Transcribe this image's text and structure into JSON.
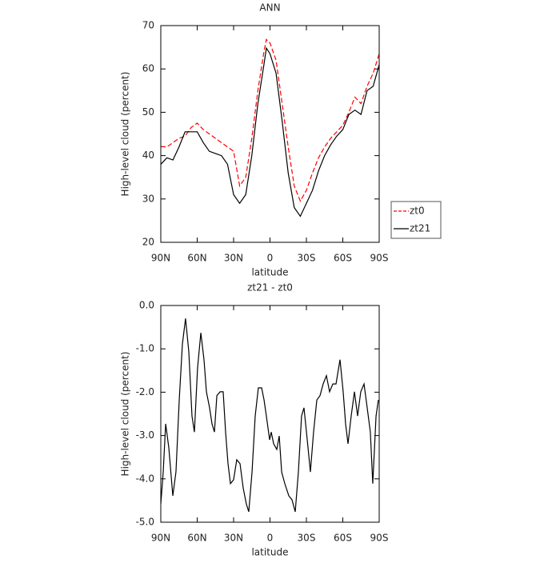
{
  "chart_data": [
    {
      "type": "line",
      "title": "ANN",
      "xlabel": "latitude",
      "ylabel": "High-level cloud (percent)",
      "x": [
        90,
        85,
        80,
        75,
        70,
        65,
        60,
        55,
        50,
        45,
        40,
        35,
        30,
        25,
        20,
        15,
        10,
        5,
        3,
        0,
        -5,
        -10,
        -15,
        -20,
        -25,
        -30,
        -35,
        -40,
        -45,
        -50,
        -55,
        -60,
        -65,
        -70,
        -75,
        -80,
        -85,
        -90
      ],
      "series": [
        {
          "name": "zt0",
          "color": "#ff0000",
          "line_style": "dashed",
          "values": [
            42.1,
            42,
            43,
            44,
            44.5,
            46.5,
            47.5,
            46,
            45,
            44,
            43,
            42,
            41,
            33,
            35,
            44,
            55,
            64,
            66.8,
            66,
            62,
            52,
            42,
            33,
            29.5,
            32,
            36,
            39.5,
            42,
            44,
            45.5,
            47,
            50,
            53.5,
            52,
            56,
            59,
            63.5
          ]
        },
        {
          "name": "zt21",
          "color": "#000000",
          "line_style": "solid",
          "values": [
            38,
            39.5,
            39,
            42,
            45.5,
            45.5,
            45.5,
            43,
            41,
            40.5,
            40,
            38,
            31,
            29,
            31,
            40,
            52,
            61,
            64.8,
            63.5,
            59,
            48,
            36,
            28,
            26,
            29,
            32,
            36.5,
            40,
            42.5,
            44.5,
            46,
            49.5,
            50.5,
            49.5,
            55,
            56,
            61
          ]
        }
      ],
      "xlim": [
        90,
        -90
      ],
      "xticks": [
        {
          "value": 90,
          "label": "90N"
        },
        {
          "value": 60,
          "label": "60N"
        },
        {
          "value": 30,
          "label": "30N"
        },
        0,
        {
          "value": -30,
          "label": "30S"
        },
        {
          "value": -60,
          "label": "60S"
        },
        {
          "value": -90,
          "label": "90S"
        }
      ],
      "ylim": [
        20,
        70
      ],
      "yticks": [
        20,
        30,
        40,
        50,
        60,
        70
      ],
      "legend": "right"
    },
    {
      "type": "line",
      "title": "zt21 - zt0",
      "xlabel": "latitude",
      "ylabel": "High-level cloud (percent)",
      "x": [
        90,
        88,
        86,
        83.4,
        80.1,
        77.5,
        74.8,
        72.2,
        69.6,
        66.9,
        64.3,
        62.3,
        59.7,
        57,
        54.4,
        52.4,
        49.8,
        47.8,
        45.8,
        43.8,
        41.1,
        38.6,
        36.6,
        34.6,
        32.6,
        30,
        27.4,
        24.7,
        22.1,
        19.5,
        17.5,
        14.8,
        12.2,
        9.6,
        6.9,
        4.9,
        3,
        0.3,
        -1,
        -3,
        -5.6,
        -7.6,
        -9.6,
        -12.2,
        -15.5,
        -18.1,
        -20.8,
        -23.4,
        -26,
        -28,
        -30.7,
        -33.3,
        -35.9,
        -38.6,
        -41.2,
        -43.8,
        -46.5,
        -49.1,
        -51.8,
        -54.4,
        -57.7,
        -60.3,
        -62.3,
        -64.3,
        -66.9,
        -69.6,
        -72.2,
        -74.8,
        -77.5,
        -80.1,
        -82.7,
        -84.7,
        -87.4,
        -89.3
      ],
      "series": [
        {
          "name": "zt21 - zt0",
          "color": "#000000",
          "line_style": "solid",
          "values": [
            -4.58,
            -3.84,
            -2.73,
            -3.28,
            -4.39,
            -3.84,
            -2.18,
            -0.89,
            -0.3,
            -1.07,
            -2.55,
            -2.92,
            -1.44,
            -0.63,
            -1.25,
            -1.99,
            -2.36,
            -2.73,
            -2.92,
            -2.08,
            -1.99,
            -1.99,
            -2.92,
            -3.65,
            -4.11,
            -4.02,
            -3.56,
            -3.65,
            -4.21,
            -4.58,
            -4.76,
            -3.84,
            -2.55,
            -1.9,
            -1.9,
            -2.18,
            -2.55,
            -3.1,
            -2.92,
            -3.19,
            -3.32,
            -3.01,
            -3.84,
            -4.11,
            -4.39,
            -4.48,
            -4.76,
            -3.84,
            -2.55,
            -2.36,
            -3.1,
            -3.84,
            -2.92,
            -2.18,
            -2.08,
            -1.81,
            -1.62,
            -1.99,
            -1.81,
            -1.81,
            -1.25,
            -1.99,
            -2.73,
            -3.19,
            -2.55,
            -1.99,
            -2.55,
            -1.99,
            -1.81,
            -2.36,
            -2.92,
            -4.11,
            -2.55,
            -2.18
          ]
        }
      ],
      "xlim": [
        90,
        -90
      ],
      "xticks": [
        {
          "value": 90,
          "label": "90N"
        },
        {
          "value": 60,
          "label": "60N"
        },
        {
          "value": 30,
          "label": "30N"
        },
        0,
        {
          "value": -30,
          "label": "30S"
        },
        {
          "value": -60,
          "label": "60S"
        },
        {
          "value": -90,
          "label": "90S"
        }
      ],
      "ylim": [
        -5,
        0
      ],
      "yticks": [
        {
          "value": -5,
          "label": "-5.0"
        },
        {
          "value": -4,
          "label": "-4.0"
        },
        {
          "value": -3,
          "label": "-3.0"
        },
        {
          "value": -2,
          "label": "-2.0"
        },
        {
          "value": -1,
          "label": "-1.0"
        },
        {
          "value": 0,
          "label": "0.0"
        }
      ]
    }
  ]
}
